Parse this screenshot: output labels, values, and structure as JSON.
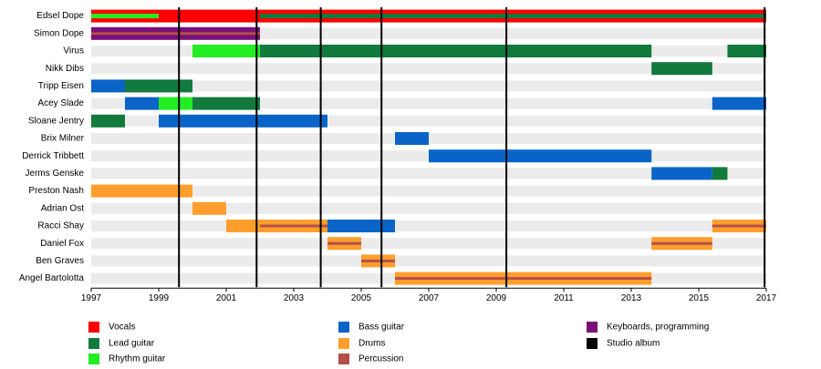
{
  "chart_data": {
    "type": "timeline",
    "xlim": [
      1997,
      2017
    ],
    "xticks": [
      1997,
      1999,
      2001,
      2003,
      2005,
      2007,
      2009,
      2011,
      2013,
      2015,
      2017
    ],
    "roles": [
      {
        "name": "Vocals",
        "color": "#ff0000"
      },
      {
        "name": "Lead guitar",
        "color": "#117a3c"
      },
      {
        "name": "Rhythm guitar",
        "color": "#22ee22"
      },
      {
        "name": "Bass guitar",
        "color": "#0a64c8"
      },
      {
        "name": "Drums",
        "color": "#ff9e2c"
      },
      {
        "name": "Percussion",
        "color": "#b4504a"
      },
      {
        "name": "Keyboards, programming",
        "color": "#7a0f7a"
      }
    ],
    "studio_album_label": "Studio album",
    "studio_album_color": "#000000",
    "studio_albums": [
      1999.6,
      2001.9,
      2003.8,
      2005.6,
      2009.3,
      2016.95
    ],
    "members": [
      {
        "name": "Edsel Dope",
        "spans": [
          {
            "start": 1997,
            "end": 1999,
            "roles": [
              "Vocals",
              "Rhythm guitar"
            ]
          },
          {
            "start": 1999,
            "end": 2002,
            "roles": [
              "Vocals"
            ]
          },
          {
            "start": 2002,
            "end": 2017,
            "roles": [
              "Vocals",
              "Lead guitar"
            ]
          }
        ]
      },
      {
        "name": "Simon Dope",
        "spans": [
          {
            "start": 1997,
            "end": 2002,
            "roles": [
              "Keyboards, programming",
              "Percussion"
            ]
          }
        ]
      },
      {
        "name": "Virus",
        "spans": [
          {
            "start": 2000,
            "end": 2002,
            "roles": [
              "Rhythm guitar"
            ]
          },
          {
            "start": 2002,
            "end": 2013.6,
            "roles": [
              "Lead guitar"
            ]
          },
          {
            "start": 2015.85,
            "end": 2017,
            "roles": [
              "Lead guitar"
            ]
          }
        ]
      },
      {
        "name": "Nikk Dibs",
        "spans": [
          {
            "start": 2013.6,
            "end": 2015.4,
            "roles": [
              "Lead guitar"
            ]
          }
        ]
      },
      {
        "name": "Tripp Eisen",
        "spans": [
          {
            "start": 1997,
            "end": 1998,
            "roles": [
              "Bass guitar"
            ]
          },
          {
            "start": 1998,
            "end": 2000,
            "roles": [
              "Lead guitar"
            ]
          }
        ]
      },
      {
        "name": "Acey Slade",
        "spans": [
          {
            "start": 1998,
            "end": 1999,
            "roles": [
              "Bass guitar"
            ]
          },
          {
            "start": 1999,
            "end": 2000,
            "roles": [
              "Rhythm guitar"
            ]
          },
          {
            "start": 2000,
            "end": 2002,
            "roles": [
              "Lead guitar"
            ]
          },
          {
            "start": 2015.4,
            "end": 2017,
            "roles": [
              "Bass guitar"
            ]
          }
        ]
      },
      {
        "name": "Sloane Jentry",
        "spans": [
          {
            "start": 1997,
            "end": 1998,
            "roles": [
              "Lead guitar"
            ]
          },
          {
            "start": 1999,
            "end": 2004,
            "roles": [
              "Bass guitar"
            ]
          }
        ]
      },
      {
        "name": "Brix Milner",
        "spans": [
          {
            "start": 2006,
            "end": 2007,
            "roles": [
              "Bass guitar"
            ]
          }
        ]
      },
      {
        "name": "Derrick Tribbett",
        "spans": [
          {
            "start": 2007,
            "end": 2013.6,
            "roles": [
              "Bass guitar"
            ]
          }
        ]
      },
      {
        "name": "Jerms Genske",
        "spans": [
          {
            "start": 2013.6,
            "end": 2015.4,
            "roles": [
              "Bass guitar"
            ]
          },
          {
            "start": 2015.4,
            "end": 2015.85,
            "roles": [
              "Lead guitar"
            ]
          }
        ]
      },
      {
        "name": "Preston Nash",
        "spans": [
          {
            "start": 1997,
            "end": 2000,
            "roles": [
              "Drums"
            ]
          }
        ]
      },
      {
        "name": "Adrian Ost",
        "spans": [
          {
            "start": 2000,
            "end": 2001,
            "roles": [
              "Drums"
            ]
          }
        ]
      },
      {
        "name": "Racci Shay",
        "spans": [
          {
            "start": 2001,
            "end": 2002,
            "roles": [
              "Drums"
            ]
          },
          {
            "start": 2002,
            "end": 2004,
            "roles": [
              "Drums",
              "Percussion"
            ]
          },
          {
            "start": 2004,
            "end": 2006,
            "roles": [
              "Bass guitar"
            ]
          },
          {
            "start": 2015.4,
            "end": 2017,
            "roles": [
              "Drums",
              "Percussion"
            ]
          }
        ]
      },
      {
        "name": "Daniel Fox",
        "spans": [
          {
            "start": 2004,
            "end": 2005,
            "roles": [
              "Drums",
              "Percussion"
            ]
          },
          {
            "start": 2013.6,
            "end": 2015.4,
            "roles": [
              "Drums",
              "Percussion"
            ]
          }
        ]
      },
      {
        "name": "Ben Graves",
        "spans": [
          {
            "start": 2005,
            "end": 2006,
            "roles": [
              "Drums",
              "Percussion"
            ]
          }
        ]
      },
      {
        "name": "Angel Bartolotta",
        "spans": [
          {
            "start": 2006,
            "end": 2013.6,
            "roles": [
              "Drums",
              "Percussion"
            ]
          }
        ]
      }
    ]
  }
}
